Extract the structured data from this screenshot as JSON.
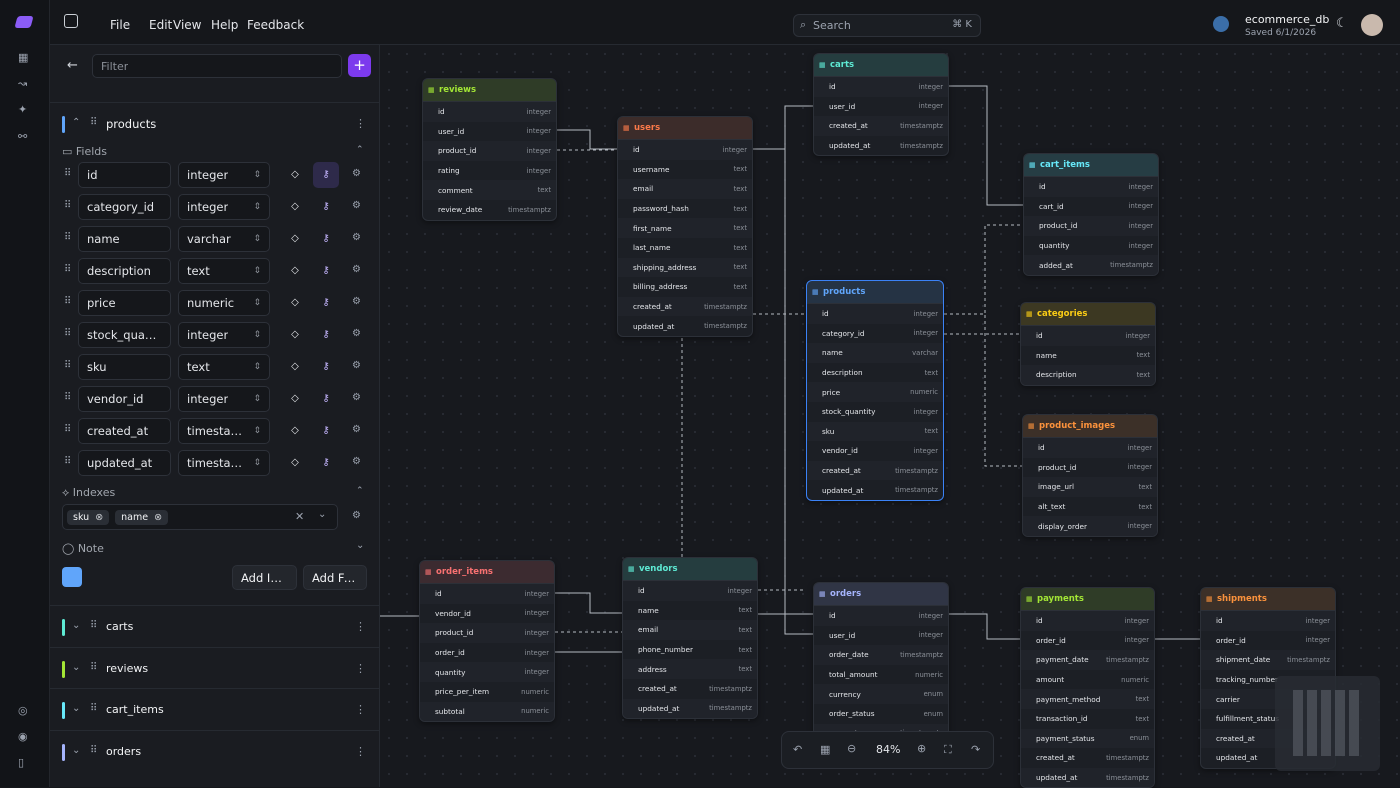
{
  "menu": [
    "File",
    "Edit",
    "View",
    "Help",
    "Feedback"
  ],
  "search": {
    "placeholder": "Search",
    "shortcut": "⌘ K"
  },
  "database": {
    "name": "ecommerce_db",
    "saved": "Saved 6/1/2026"
  },
  "sidebar": {
    "filter_placeholder": "Filter",
    "table": "products",
    "fields_heading": "Fields",
    "fields": [
      {
        "name": "id",
        "type": "integer"
      },
      {
        "name": "category_id",
        "type": "integer"
      },
      {
        "name": "name",
        "type": "varchar"
      },
      {
        "name": "description",
        "type": "text"
      },
      {
        "name": "price",
        "type": "numeric"
      },
      {
        "name": "stock_quantity",
        "type": "integer"
      },
      {
        "name": "sku",
        "type": "text"
      },
      {
        "name": "vendor_id",
        "type": "integer"
      },
      {
        "name": "created_at",
        "type": "timestamptz"
      },
      {
        "name": "updated_at",
        "type": "timestamptz"
      }
    ],
    "indexes_heading": "Indexes",
    "index_columns": [
      "sku",
      "name"
    ],
    "note_heading": "Note",
    "add_index": "Add Index",
    "add_field": "Add Field",
    "other_tables": [
      "carts",
      "reviews",
      "cart_items",
      "orders"
    ]
  },
  "tables": [
    {
      "name": "reviews",
      "color": "#a3e635",
      "fields": [
        {
          "name": "id",
          "type": "integer"
        },
        {
          "name": "user_id",
          "type": "integer"
        },
        {
          "name": "product_id",
          "type": "integer"
        },
        {
          "name": "rating",
          "type": "integer"
        },
        {
          "name": "comment",
          "type": "text"
        },
        {
          "name": "review_date",
          "type": "timestamptz"
        }
      ]
    },
    {
      "name": "users",
      "color": "#fb7a4a",
      "fields": [
        {
          "name": "id",
          "type": "integer"
        },
        {
          "name": "username",
          "type": "text"
        },
        {
          "name": "email",
          "type": "text"
        },
        {
          "name": "password_hash",
          "type": "text"
        },
        {
          "name": "first_name",
          "type": "text"
        },
        {
          "name": "last_name",
          "type": "text"
        },
        {
          "name": "shipping_address",
          "type": "text"
        },
        {
          "name": "billing_address",
          "type": "text"
        },
        {
          "name": "created_at",
          "type": "timestamptz"
        },
        {
          "name": "updated_at",
          "type": "timestamptz"
        }
      ]
    },
    {
      "name": "carts",
      "color": "#5eead4",
      "fields": [
        {
          "name": "id",
          "type": "integer"
        },
        {
          "name": "user_id",
          "type": "integer"
        },
        {
          "name": "created_at",
          "type": "timestamptz"
        },
        {
          "name": "updated_at",
          "type": "timestamptz"
        }
      ]
    },
    {
      "name": "cart_items",
      "color": "#67e8f9",
      "fields": [
        {
          "name": "id",
          "type": "integer"
        },
        {
          "name": "cart_id",
          "type": "integer"
        },
        {
          "name": "product_id",
          "type": "integer"
        },
        {
          "name": "quantity",
          "type": "integer"
        },
        {
          "name": "added_at",
          "type": "timestamptz"
        }
      ]
    },
    {
      "name": "products",
      "color": "#60a5fa",
      "fields": [
        {
          "name": "id",
          "type": "integer"
        },
        {
          "name": "category_id",
          "type": "integer"
        },
        {
          "name": "name",
          "type": "varchar"
        },
        {
          "name": "description",
          "type": "text"
        },
        {
          "name": "price",
          "type": "numeric"
        },
        {
          "name": "stock_quantity",
          "type": "integer"
        },
        {
          "name": "sku",
          "type": "text"
        },
        {
          "name": "vendor_id",
          "type": "integer"
        },
        {
          "name": "created_at",
          "type": "timestamptz"
        },
        {
          "name": "updated_at",
          "type": "timestamptz"
        }
      ]
    },
    {
      "name": "categories",
      "color": "#facc15",
      "fields": [
        {
          "name": "id",
          "type": "integer"
        },
        {
          "name": "name",
          "type": "text"
        },
        {
          "name": "description",
          "type": "text"
        }
      ]
    },
    {
      "name": "product_images",
      "color": "#fb923c",
      "fields": [
        {
          "name": "id",
          "type": "integer"
        },
        {
          "name": "product_id",
          "type": "integer"
        },
        {
          "name": "image_url",
          "type": "text"
        },
        {
          "name": "alt_text",
          "type": "text"
        },
        {
          "name": "display_order",
          "type": "integer"
        }
      ]
    },
    {
      "name": "order_items",
      "color": "#f87171",
      "fields": [
        {
          "name": "id",
          "type": "integer"
        },
        {
          "name": "vendor_id",
          "type": "integer"
        },
        {
          "name": "product_id",
          "type": "integer"
        },
        {
          "name": "order_id",
          "type": "integer"
        },
        {
          "name": "quantity",
          "type": "integer"
        },
        {
          "name": "price_per_item",
          "type": "numeric"
        },
        {
          "name": "subtotal",
          "type": "numeric"
        }
      ]
    },
    {
      "name": "vendors",
      "color": "#5eead4",
      "fields": [
        {
          "name": "id",
          "type": "integer"
        },
        {
          "name": "name",
          "type": "text"
        },
        {
          "name": "email",
          "type": "text"
        },
        {
          "name": "phone_number",
          "type": "text"
        },
        {
          "name": "address",
          "type": "text"
        },
        {
          "name": "created_at",
          "type": "timestamptz"
        },
        {
          "name": "updated_at",
          "type": "timestamptz"
        }
      ]
    },
    {
      "name": "orders",
      "color": "#a5b4fc",
      "fields": [
        {
          "name": "id",
          "type": "integer"
        },
        {
          "name": "user_id",
          "type": "integer"
        },
        {
          "name": "order_date",
          "type": "timestamptz"
        },
        {
          "name": "total_amount",
          "type": "numeric"
        },
        {
          "name": "currency",
          "type": "enum"
        },
        {
          "name": "order_status",
          "type": "enum"
        },
        {
          "name": "created_at",
          "type": "timestamptz"
        }
      ]
    },
    {
      "name": "payments",
      "color": "#a3e635",
      "fields": [
        {
          "name": "id",
          "type": "integer"
        },
        {
          "name": "order_id",
          "type": "integer"
        },
        {
          "name": "payment_date",
          "type": "timestamptz"
        },
        {
          "name": "amount",
          "type": "numeric"
        },
        {
          "name": "payment_method",
          "type": "text"
        },
        {
          "name": "transaction_id",
          "type": "text"
        },
        {
          "name": "payment_status",
          "type": "enum"
        },
        {
          "name": "created_at",
          "type": "timestamptz"
        },
        {
          "name": "updated_at",
          "type": "timestamptz"
        }
      ]
    },
    {
      "name": "shipments",
      "color": "#fb923c",
      "fields": [
        {
          "name": "id",
          "type": "integer"
        },
        {
          "name": "order_id",
          "type": "integer"
        },
        {
          "name": "shipment_date",
          "type": "timestamptz"
        },
        {
          "name": "tracking_number"
        },
        {
          "name": "carrier"
        },
        {
          "name": "fulfillment_status"
        },
        {
          "name": "created_at"
        },
        {
          "name": "updated_at"
        }
      ]
    }
  ],
  "zoom": "84%"
}
